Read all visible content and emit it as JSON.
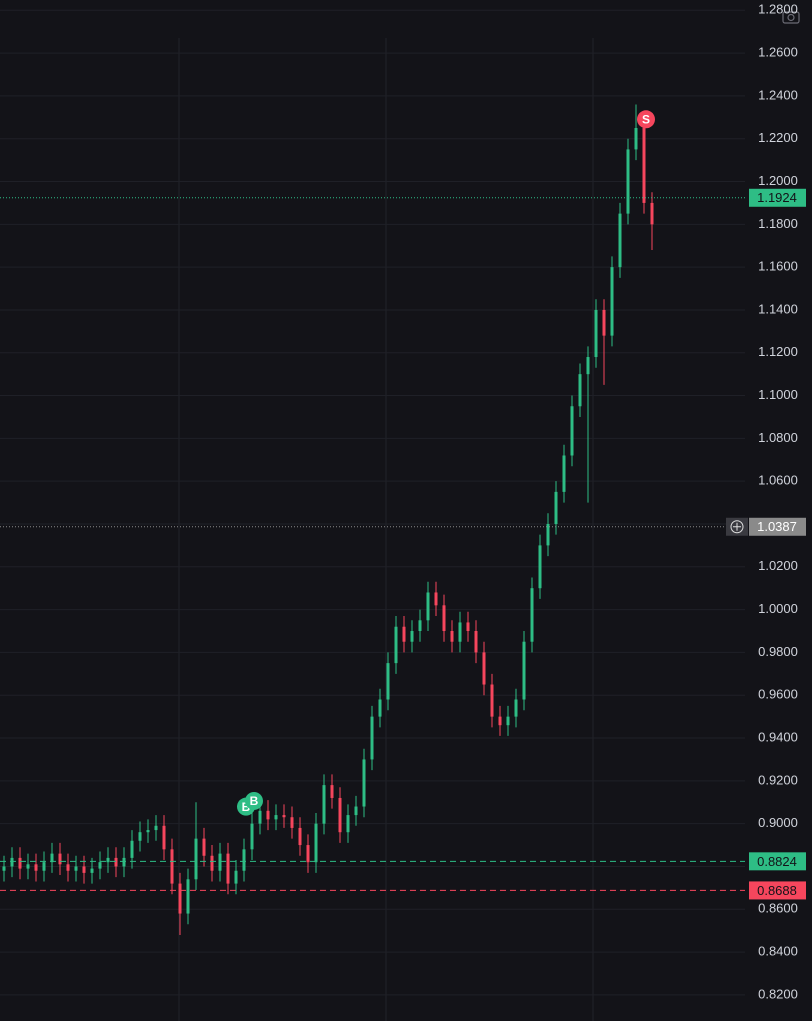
{
  "chart_data": {
    "type": "candlestick",
    "up_color": "#2ebd85",
    "down_color": "#f6465d",
    "grid": true,
    "ylim": [
      0.8078,
      1.2848
    ],
    "yticks": [
      {
        "value": 0.82,
        "label": "0.8200"
      },
      {
        "value": 0.84,
        "label": "0.8400"
      },
      {
        "value": 0.86,
        "label": "0.8600"
      },
      {
        "value": 0.88,
        "label": "0.8800"
      },
      {
        "value": 0.9,
        "label": "0.9000"
      },
      {
        "value": 0.92,
        "label": "0.9200"
      },
      {
        "value": 0.94,
        "label": "0.9400"
      },
      {
        "value": 0.96,
        "label": "0.9600"
      },
      {
        "value": 0.98,
        "label": "0.9800"
      },
      {
        "value": 1,
        "label": "1.0000"
      },
      {
        "value": 1.02,
        "label": "1.0200"
      },
      {
        "value": 1.04,
        "label": "1.0400"
      },
      {
        "value": 1.06,
        "label": "1.0600"
      },
      {
        "value": 1.08,
        "label": "1.0800"
      },
      {
        "value": 1.1,
        "label": "1.1000"
      },
      {
        "value": 1.12,
        "label": "1.1200"
      },
      {
        "value": 1.14,
        "label": "1.1400"
      },
      {
        "value": 1.16,
        "label": "1.1600"
      },
      {
        "value": 1.18,
        "label": "1.1800"
      },
      {
        "value": 1.2,
        "label": "1.2000"
      },
      {
        "value": 1.22,
        "label": "1.2200"
      },
      {
        "value": 1.24,
        "label": "1.2400"
      },
      {
        "value": 1.26,
        "label": "1.2600"
      },
      {
        "value": 1.28,
        "label": "1.2800"
      }
    ],
    "open": [
      0.878,
      0.88,
      0.884,
      0.879,
      0.881,
      0.878,
      0.882,
      0.886,
      0.881,
      0.878,
      0.88,
      0.877,
      0.879,
      0.882,
      0.884,
      0.88,
      0.884,
      0.892,
      0.896,
      0.897,
      0.899,
      0.888,
      0.872,
      0.858,
      0.874,
      0.893,
      0.885,
      0.878,
      0.886,
      0.872,
      0.878,
      0.888,
      0.9,
      0.906,
      0.902,
      0.904,
      0.903,
      0.898,
      0.89,
      0.882,
      0.9,
      0.918,
      0.912,
      0.896,
      0.904,
      0.908,
      0.93,
      0.95,
      0.958,
      0.975,
      0.992,
      0.985,
      0.99,
      0.995,
      1.008,
      1.002,
      0.99,
      0.985,
      0.994,
      0.99,
      0.98,
      0.965,
      0.95,
      0.946,
      0.95,
      0.958,
      0.985,
      1.01,
      1.03,
      1.04,
      1.055,
      1.072,
      1.095,
      1.11,
      1.118,
      1.14,
      1.128,
      1.16,
      1.185,
      1.215,
      1.225,
      1.19
    ],
    "high": [
      0.885,
      0.889,
      0.889,
      0.886,
      0.886,
      0.887,
      0.891,
      0.891,
      0.886,
      0.885,
      0.885,
      0.884,
      0.887,
      0.889,
      0.889,
      0.889,
      0.897,
      0.901,
      0.902,
      0.904,
      0.904,
      0.893,
      0.877,
      0.879,
      0.91,
      0.898,
      0.89,
      0.891,
      0.891,
      0.883,
      0.893,
      0.905,
      0.911,
      0.911,
      0.909,
      0.909,
      0.908,
      0.903,
      0.895,
      0.905,
      0.923,
      0.923,
      0.917,
      0.909,
      0.913,
      0.935,
      0.955,
      0.963,
      0.98,
      0.997,
      0.997,
      0.995,
      1.0,
      1.013,
      1.013,
      1.007,
      0.995,
      0.999,
      0.999,
      0.995,
      0.985,
      0.97,
      0.955,
      0.955,
      0.963,
      0.99,
      1.015,
      1.035,
      1.045,
      1.06,
      1.077,
      1.1,
      1.115,
      1.123,
      1.145,
      1.145,
      1.165,
      1.19,
      1.22,
      1.236,
      1.23,
      1.195
    ],
    "low": [
      0.873,
      0.875,
      0.874,
      0.874,
      0.873,
      0.873,
      0.877,
      0.876,
      0.873,
      0.873,
      0.872,
      0.872,
      0.874,
      0.877,
      0.875,
      0.875,
      0.879,
      0.887,
      0.891,
      0.892,
      0.883,
      0.867,
      0.848,
      0.853,
      0.869,
      0.88,
      0.873,
      0.873,
      0.867,
      0.867,
      0.873,
      0.883,
      0.895,
      0.897,
      0.897,
      0.898,
      0.893,
      0.885,
      0.877,
      0.877,
      0.895,
      0.907,
      0.891,
      0.891,
      0.899,
      0.903,
      0.925,
      0.945,
      0.953,
      0.97,
      0.98,
      0.98,
      0.985,
      0.99,
      0.997,
      0.985,
      0.98,
      0.98,
      0.985,
      0.975,
      0.96,
      0.945,
      0.941,
      0.941,
      0.945,
      0.953,
      0.98,
      1.005,
      1.025,
      1.035,
      1.05,
      1.067,
      1.09,
      1.05,
      1.113,
      1.105,
      1.123,
      1.155,
      1.18,
      1.21,
      1.185,
      1.168
    ],
    "close": [
      0.88,
      0.884,
      0.879,
      0.881,
      0.878,
      0.882,
      0.886,
      0.881,
      0.878,
      0.88,
      0.877,
      0.879,
      0.882,
      0.884,
      0.88,
      0.884,
      0.892,
      0.896,
      0.897,
      0.899,
      0.888,
      0.872,
      0.858,
      0.874,
      0.893,
      0.885,
      0.878,
      0.886,
      0.872,
      0.878,
      0.888,
      0.9,
      0.906,
      0.902,
      0.904,
      0.903,
      0.898,
      0.89,
      0.882,
      0.9,
      0.918,
      0.912,
      0.896,
      0.904,
      0.908,
      0.93,
      0.95,
      0.958,
      0.975,
      0.992,
      0.985,
      0.99,
      0.995,
      1.008,
      1.002,
      0.99,
      0.985,
      0.994,
      0.99,
      0.98,
      0.965,
      0.95,
      0.946,
      0.95,
      0.958,
      0.985,
      1.01,
      1.03,
      1.04,
      1.055,
      1.072,
      1.095,
      1.11,
      1.118,
      1.14,
      1.128,
      1.16,
      1.185,
      1.215,
      1.225,
      1.19,
      1.18
    ],
    "markers": [
      {
        "text": "B",
        "candle": 30,
        "color": "#2ebd85"
      },
      {
        "text": "B",
        "candle": 31,
        "color": "#2ebd85"
      },
      {
        "text": "S",
        "candle": 80,
        "color": "#f6465d"
      }
    ],
    "price_lines": [
      {
        "value": 1.1924,
        "color": "#2ebd85",
        "style": "dotted"
      },
      {
        "value": 1.0387,
        "color": "#8a8a8a",
        "style": "dotted"
      },
      {
        "value": 0.8824,
        "color": "#2ebd85",
        "style": "dashed"
      },
      {
        "value": 0.8688,
        "color": "#f6465d",
        "style": "dashed"
      }
    ]
  }
}
